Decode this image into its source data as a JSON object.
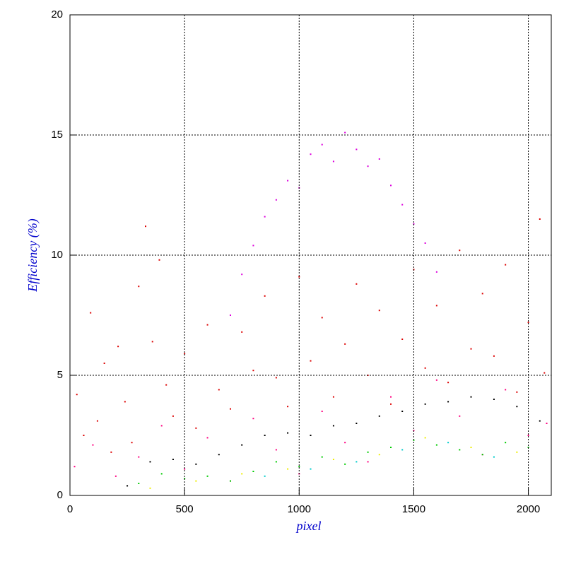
{
  "chart_data": {
    "type": "scatter",
    "x_label": "pixel",
    "y_label": "Efficiency (%)",
    "xlim": [
      0,
      2100
    ],
    "ylim": [
      0,
      20
    ],
    "xticks": [
      0,
      500,
      1000,
      1500,
      2000
    ],
    "yticks": [
      0,
      5,
      10,
      15,
      20
    ],
    "grid": true,
    "series": [
      {
        "color": "#dd0000",
        "x": [
          30,
          60,
          90,
          120,
          150,
          180,
          210,
          240,
          270,
          300,
          330,
          360,
          390,
          420,
          450,
          500,
          550,
          600,
          650,
          700,
          750,
          800,
          850,
          900,
          950,
          1000,
          1050,
          1100,
          1150,
          1200,
          1250,
          1300,
          1350,
          1400,
          1450,
          1500,
          1550,
          1600,
          1650,
          1700,
          1750,
          1800,
          1850,
          1900,
          1950,
          2000,
          2050,
          2070
        ],
        "values": [
          4.2,
          2.5,
          7.6,
          3.1,
          5.5,
          1.8,
          6.2,
          3.9,
          2.2,
          8.7,
          11.2,
          6.4,
          9.8,
          4.6,
          3.3,
          5.9,
          2.8,
          7.1,
          4.4,
          3.6,
          6.8,
          5.2,
          8.3,
          4.9,
          3.7,
          9.1,
          5.6,
          7.4,
          4.1,
          6.3,
          8.8,
          5.0,
          7.7,
          3.8,
          6.5,
          9.4,
          5.3,
          7.9,
          4.7,
          10.2,
          6.1,
          8.4,
          5.8,
          9.6,
          4.3,
          7.2,
          11.5,
          5.1
        ]
      },
      {
        "color": "#dd00dd",
        "x": [
          700,
          750,
          800,
          850,
          900,
          950,
          1000,
          1050,
          1100,
          1150,
          1200,
          1250,
          1300,
          1350,
          1400,
          1450,
          1500,
          1550,
          1600
        ],
        "values": [
          7.5,
          9.2,
          10.4,
          11.6,
          12.3,
          13.1,
          12.8,
          14.2,
          14.6,
          13.9,
          15.1,
          14.4,
          13.7,
          14.0,
          12.9,
          12.1,
          11.3,
          10.5,
          9.3
        ]
      },
      {
        "color": "#ff0080",
        "x": [
          20,
          100,
          200,
          300,
          400,
          500,
          600,
          700,
          800,
          900,
          1000,
          1100,
          1200,
          1300,
          1400,
          1500,
          1600,
          1700,
          1800,
          1900,
          2000,
          2080
        ],
        "values": [
          1.2,
          2.1,
          0.8,
          1.6,
          2.9,
          1.1,
          2.4,
          0.6,
          3.2,
          1.9,
          0.9,
          3.5,
          2.2,
          1.4,
          4.1,
          2.7,
          4.8,
          3.3,
          1.7,
          4.4,
          2.5,
          3.0
        ]
      },
      {
        "color": "#00cc00",
        "x": [
          300,
          400,
          500,
          600,
          700,
          800,
          900,
          1000,
          1100,
          1200,
          1300,
          1400,
          1500,
          1600,
          1700,
          1800,
          1900,
          2000
        ],
        "values": [
          0.5,
          0.9,
          0.7,
          0.8,
          0.6,
          1.0,
          1.4,
          1.2,
          1.6,
          1.3,
          1.8,
          2.0,
          2.3,
          2.1,
          1.9,
          1.7,
          2.2,
          2.0
        ]
      },
      {
        "color": "#eeee00",
        "x": [
          350,
          550,
          750,
          950,
          1150,
          1350,
          1550,
          1750,
          1950
        ],
        "values": [
          0.3,
          0.6,
          0.9,
          1.1,
          1.5,
          1.7,
          2.4,
          2.0,
          1.8
        ]
      },
      {
        "color": "#00cccc",
        "x": [
          850,
          1050,
          1250,
          1450,
          1650,
          1850
        ],
        "values": [
          0.8,
          1.1,
          1.4,
          1.9,
          2.2,
          1.6
        ]
      },
      {
        "color": "#000000",
        "x": [
          250,
          350,
          450,
          550,
          650,
          750,
          850,
          950,
          1050,
          1150,
          1250,
          1350,
          1450,
          1550,
          1650,
          1750,
          1850,
          1950,
          2050
        ],
        "values": [
          0.4,
          1.4,
          1.5,
          1.3,
          1.7,
          2.1,
          2.5,
          2.6,
          2.5,
          2.9,
          3.0,
          3.3,
          3.5,
          3.8,
          3.9,
          4.1,
          4.0,
          3.7,
          3.1
        ]
      }
    ]
  }
}
